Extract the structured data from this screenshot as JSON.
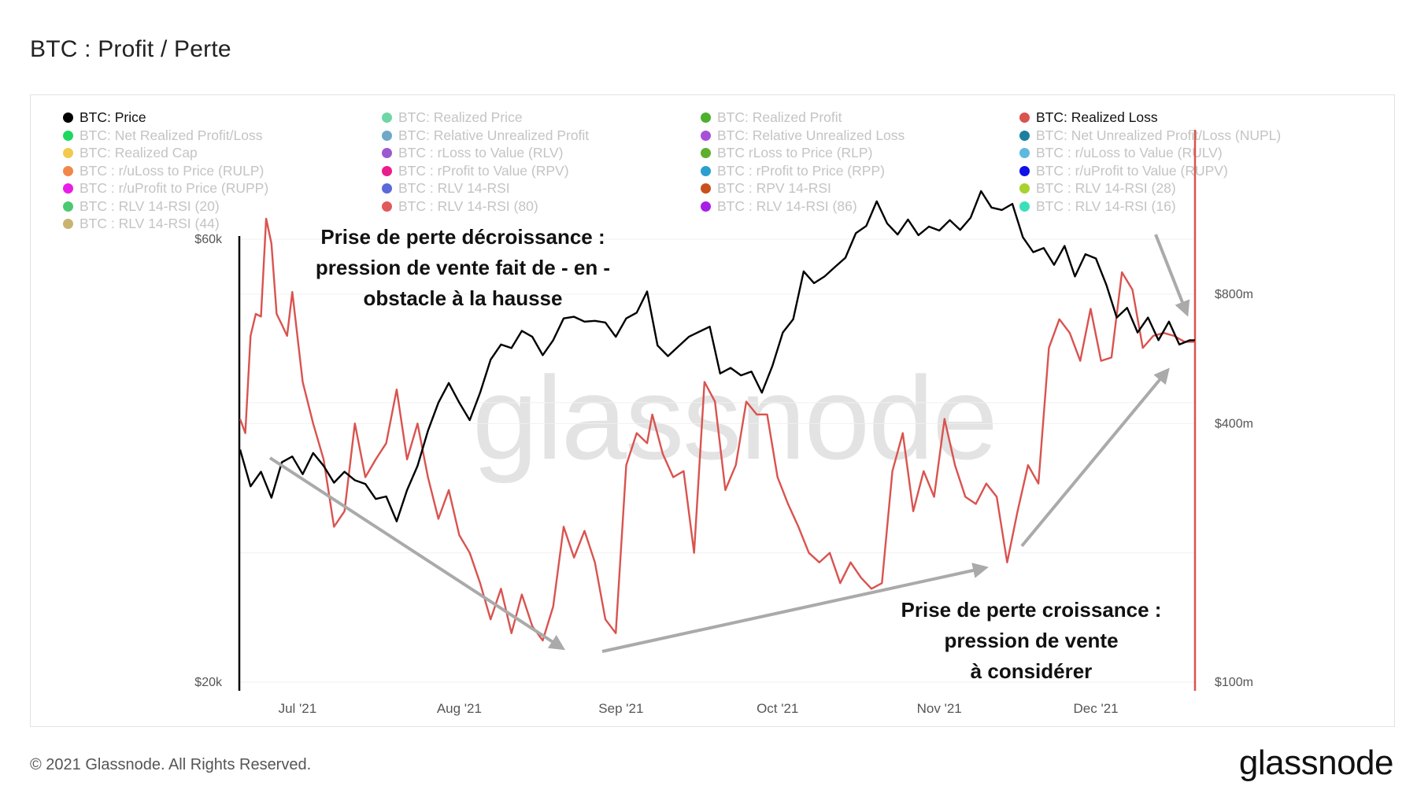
{
  "title": "BTC : Profit / Perte",
  "footer": "© 2021 Glassnode. All Rights Reserved.",
  "logo": "glassnode",
  "watermark": "glassnode",
  "legend": [
    {
      "label": "BTC: Price",
      "color": "#000000",
      "active": true
    },
    {
      "label": "BTC: Realized Price",
      "color": "#6fd6a6",
      "active": false
    },
    {
      "label": "BTC: Realized Profit",
      "color": "#4caf2e",
      "active": false
    },
    {
      "label": "BTC: Realized Loss",
      "color": "#d9534f",
      "active": true
    },
    {
      "label": "BTC: Net Realized Profit/Loss",
      "color": "#1ed760",
      "active": false
    },
    {
      "label": "BTC: Relative Unrealized Profit",
      "color": "#6fa8c8",
      "active": false
    },
    {
      "label": "BTC: Relative Unrealized Loss",
      "color": "#a84fd8",
      "active": false
    },
    {
      "label": "BTC: Net Unrealized Profit/Loss (NUPL)",
      "color": "#1c7fa0",
      "active": false
    },
    {
      "label": "BTC: Realized Cap",
      "color": "#f2c94c",
      "active": false
    },
    {
      "label": "BTC : rLoss to Value (RLV)",
      "color": "#9b59d0",
      "active": false
    },
    {
      "label": "BTC rLoss to Price (RLP)",
      "color": "#5fae2e",
      "active": false
    },
    {
      "label": "BTC : r/uLoss to Value (RULV)",
      "color": "#5fb8e0",
      "active": false
    },
    {
      "label": "BTC : r/uLoss to Price (RULP)",
      "color": "#f2874a",
      "active": false
    },
    {
      "label": "BTC : rProfit to Value (RPV)",
      "color": "#e91e8c",
      "active": false
    },
    {
      "label": "BTC : rProfit to Price (RPP)",
      "color": "#2a9fd0",
      "active": false
    },
    {
      "label": "BTC : r/uProfit to Value (RUPV)",
      "color": "#1010e8",
      "active": false
    },
    {
      "label": "BTC : r/uProfit to Price (RUPP)",
      "color": "#e81ee8",
      "active": false
    },
    {
      "label": "BTC : RLV 14-RSI",
      "color": "#5a6ad8",
      "active": false
    },
    {
      "label": "BTC : RPV 14-RSI",
      "color": "#c8501e",
      "active": false
    },
    {
      "label": "BTC : RLV 14-RSI (28)",
      "color": "#a8d22e",
      "active": false
    },
    {
      "label": "BTC : RLV 14-RSI (20)",
      "color": "#4cc870",
      "active": false
    },
    {
      "label": "BTC : RLV 14-RSI (80)",
      "color": "#e05a5a",
      "active": false
    },
    {
      "label": "BTC : RLV 14-RSI (86)",
      "color": "#a81ee8",
      "active": false
    },
    {
      "label": "BTC : RLV 14-RSI (16)",
      "color": "#3ce0b8",
      "active": false
    },
    {
      "label": "BTC : RLV 14-RSI (44)",
      "color": "#c8b46e",
      "active": false
    }
  ],
  "annotations": {
    "top_left": [
      "Prise de perte décroissance :",
      "pression de vente fait de - en -",
      "obstacle à la hausse"
    ],
    "bottom_right": [
      "Prise de perte croissance :",
      "pression de vente",
      "à considérer"
    ]
  },
  "chart_data": {
    "type": "line",
    "x_ticks": [
      "Jul '21",
      "Aug '21",
      "Sep '21",
      "Oct '21",
      "Nov '21",
      "Dec '21"
    ],
    "y_left": {
      "scale": "log",
      "ticks": [
        "$20k",
        "$60k"
      ],
      "tick_values": [
        20000,
        60000
      ]
    },
    "y_right": {
      "scale": "log",
      "ticks": [
        "$100m",
        "$400m",
        "$800m"
      ],
      "tick_values": [
        100000000,
        400000000,
        800000000
      ]
    },
    "x_range": [
      "2021-06-20",
      "2021-12-20"
    ],
    "series": [
      {
        "name": "BTC: Price",
        "color": "#000000",
        "axis": "left",
        "points": [
          [
            "2021-06-20",
            35600
          ],
          [
            "2021-06-22",
            32500
          ],
          [
            "2021-06-24",
            33700
          ],
          [
            "2021-06-26",
            31600
          ],
          [
            "2021-06-28",
            34500
          ],
          [
            "2021-06-30",
            35000
          ],
          [
            "2021-07-02",
            33500
          ],
          [
            "2021-07-04",
            35300
          ],
          [
            "2021-07-06",
            34200
          ],
          [
            "2021-07-08",
            32800
          ],
          [
            "2021-07-10",
            33700
          ],
          [
            "2021-07-12",
            33000
          ],
          [
            "2021-07-14",
            32700
          ],
          [
            "2021-07-16",
            31500
          ],
          [
            "2021-07-18",
            31700
          ],
          [
            "2021-07-20",
            29800
          ],
          [
            "2021-07-22",
            32200
          ],
          [
            "2021-07-24",
            34200
          ],
          [
            "2021-07-26",
            37300
          ],
          [
            "2021-07-28",
            40000
          ],
          [
            "2021-07-30",
            42000
          ],
          [
            "2021-08-01",
            40000
          ],
          [
            "2021-08-03",
            38300
          ],
          [
            "2021-08-05",
            41000
          ],
          [
            "2021-08-07",
            44500
          ],
          [
            "2021-08-09",
            46200
          ],
          [
            "2021-08-11",
            45800
          ],
          [
            "2021-08-13",
            47800
          ],
          [
            "2021-08-15",
            47100
          ],
          [
            "2021-08-17",
            45000
          ],
          [
            "2021-08-19",
            46700
          ],
          [
            "2021-08-21",
            49300
          ],
          [
            "2021-08-23",
            49500
          ],
          [
            "2021-08-25",
            48900
          ],
          [
            "2021-08-27",
            49000
          ],
          [
            "2021-08-29",
            48800
          ],
          [
            "2021-08-31",
            47100
          ],
          [
            "2021-09-02",
            49300
          ],
          [
            "2021-09-04",
            50000
          ],
          [
            "2021-09-06",
            52700
          ],
          [
            "2021-09-08",
            46100
          ],
          [
            "2021-09-10",
            44900
          ],
          [
            "2021-09-12",
            46000
          ],
          [
            "2021-09-14",
            47100
          ],
          [
            "2021-09-16",
            47700
          ],
          [
            "2021-09-18",
            48300
          ],
          [
            "2021-09-20",
            43000
          ],
          [
            "2021-09-22",
            43600
          ],
          [
            "2021-09-24",
            42800
          ],
          [
            "2021-09-26",
            43200
          ],
          [
            "2021-09-28",
            41000
          ],
          [
            "2021-09-30",
            43800
          ],
          [
            "2021-10-02",
            47600
          ],
          [
            "2021-10-04",
            49200
          ],
          [
            "2021-10-06",
            55400
          ],
          [
            "2021-10-08",
            53800
          ],
          [
            "2021-10-10",
            54700
          ],
          [
            "2021-10-12",
            56000
          ],
          [
            "2021-10-14",
            57300
          ],
          [
            "2021-10-16",
            60900
          ],
          [
            "2021-10-18",
            62000
          ],
          [
            "2021-10-20",
            65900
          ],
          [
            "2021-10-22",
            62400
          ],
          [
            "2021-10-24",
            60700
          ],
          [
            "2021-10-26",
            63000
          ],
          [
            "2021-10-28",
            60600
          ],
          [
            "2021-10-30",
            61900
          ],
          [
            "2021-11-01",
            61300
          ],
          [
            "2021-11-03",
            62900
          ],
          [
            "2021-11-05",
            61400
          ],
          [
            "2021-11-07",
            63300
          ],
          [
            "2021-11-09",
            67600
          ],
          [
            "2021-11-11",
            64900
          ],
          [
            "2021-11-13",
            64500
          ],
          [
            "2021-11-15",
            65500
          ],
          [
            "2021-11-17",
            60300
          ],
          [
            "2021-11-19",
            58100
          ],
          [
            "2021-11-21",
            58700
          ],
          [
            "2021-11-23",
            56300
          ],
          [
            "2021-11-25",
            59000
          ],
          [
            "2021-11-27",
            54700
          ],
          [
            "2021-11-29",
            57800
          ],
          [
            "2021-12-01",
            57200
          ],
          [
            "2021-12-03",
            53600
          ],
          [
            "2021-12-05",
            49400
          ],
          [
            "2021-12-07",
            50600
          ],
          [
            "2021-12-09",
            47600
          ],
          [
            "2021-12-11",
            49400
          ],
          [
            "2021-12-13",
            46700
          ],
          [
            "2021-12-15",
            48900
          ],
          [
            "2021-12-17",
            46200
          ],
          [
            "2021-12-19",
            46700
          ],
          [
            "2021-12-20",
            46700
          ]
        ]
      },
      {
        "name": "BTC: Realized Loss",
        "color": "#d9534f",
        "axis": "right",
        "points": [
          [
            "2021-06-20",
            410000000
          ],
          [
            "2021-06-21",
            380000000
          ],
          [
            "2021-06-22",
            640000000
          ],
          [
            "2021-06-23",
            720000000
          ],
          [
            "2021-06-24",
            710000000
          ],
          [
            "2021-06-25",
            1200000000
          ],
          [
            "2021-06-26",
            1050000000
          ],
          [
            "2021-06-27",
            720000000
          ],
          [
            "2021-06-28",
            680000000
          ],
          [
            "2021-06-29",
            640000000
          ],
          [
            "2021-06-30",
            810000000
          ],
          [
            "2021-07-02",
            500000000
          ],
          [
            "2021-07-04",
            400000000
          ],
          [
            "2021-07-06",
            330000000
          ],
          [
            "2021-07-08",
            230000000
          ],
          [
            "2021-07-10",
            250000000
          ],
          [
            "2021-07-12",
            400000000
          ],
          [
            "2021-07-14",
            300000000
          ],
          [
            "2021-07-16",
            330000000
          ],
          [
            "2021-07-18",
            360000000
          ],
          [
            "2021-07-20",
            480000000
          ],
          [
            "2021-07-22",
            330000000
          ],
          [
            "2021-07-24",
            400000000
          ],
          [
            "2021-07-26",
            300000000
          ],
          [
            "2021-07-28",
            240000000
          ],
          [
            "2021-07-30",
            280000000
          ],
          [
            "2021-08-01",
            220000000
          ],
          [
            "2021-08-03",
            200000000
          ],
          [
            "2021-08-05",
            170000000
          ],
          [
            "2021-08-07",
            140000000
          ],
          [
            "2021-08-09",
            165000000
          ],
          [
            "2021-08-11",
            130000000
          ],
          [
            "2021-08-13",
            160000000
          ],
          [
            "2021-08-15",
            135000000
          ],
          [
            "2021-08-17",
            125000000
          ],
          [
            "2021-08-19",
            150000000
          ],
          [
            "2021-08-21",
            230000000
          ],
          [
            "2021-08-23",
            195000000
          ],
          [
            "2021-08-25",
            225000000
          ],
          [
            "2021-08-27",
            190000000
          ],
          [
            "2021-08-29",
            140000000
          ],
          [
            "2021-08-31",
            130000000
          ],
          [
            "2021-09-02",
            320000000
          ],
          [
            "2021-09-04",
            380000000
          ],
          [
            "2021-09-06",
            360000000
          ],
          [
            "2021-09-07",
            420000000
          ],
          [
            "2021-09-09",
            340000000
          ],
          [
            "2021-09-11",
            300000000
          ],
          [
            "2021-09-13",
            310000000
          ],
          [
            "2021-09-15",
            200000000
          ],
          [
            "2021-09-17",
            500000000
          ],
          [
            "2021-09-19",
            450000000
          ],
          [
            "2021-09-21",
            280000000
          ],
          [
            "2021-09-23",
            320000000
          ],
          [
            "2021-09-25",
            450000000
          ],
          [
            "2021-09-27",
            420000000
          ],
          [
            "2021-09-29",
            420000000
          ],
          [
            "2021-10-01",
            300000000
          ],
          [
            "2021-10-03",
            260000000
          ],
          [
            "2021-10-05",
            230000000
          ],
          [
            "2021-10-07",
            200000000
          ],
          [
            "2021-10-09",
            190000000
          ],
          [
            "2021-10-11",
            200000000
          ],
          [
            "2021-10-13",
            170000000
          ],
          [
            "2021-10-15",
            190000000
          ],
          [
            "2021-10-17",
            175000000
          ],
          [
            "2021-10-19",
            165000000
          ],
          [
            "2021-10-21",
            170000000
          ],
          [
            "2021-10-23",
            310000000
          ],
          [
            "2021-10-25",
            380000000
          ],
          [
            "2021-10-27",
            250000000
          ],
          [
            "2021-10-29",
            310000000
          ],
          [
            "2021-10-31",
            270000000
          ],
          [
            "2021-11-02",
            410000000
          ],
          [
            "2021-11-04",
            320000000
          ],
          [
            "2021-11-06",
            270000000
          ],
          [
            "2021-11-08",
            260000000
          ],
          [
            "2021-11-10",
            290000000
          ],
          [
            "2021-11-12",
            270000000
          ],
          [
            "2021-11-14",
            190000000
          ],
          [
            "2021-11-16",
            250000000
          ],
          [
            "2021-11-18",
            320000000
          ],
          [
            "2021-11-20",
            290000000
          ],
          [
            "2021-11-22",
            600000000
          ],
          [
            "2021-11-24",
            700000000
          ],
          [
            "2021-11-26",
            650000000
          ],
          [
            "2021-11-28",
            560000000
          ],
          [
            "2021-11-30",
            740000000
          ],
          [
            "2021-12-02",
            560000000
          ],
          [
            "2021-12-04",
            570000000
          ],
          [
            "2021-12-06",
            900000000
          ],
          [
            "2021-12-08",
            820000000
          ],
          [
            "2021-12-10",
            600000000
          ],
          [
            "2021-12-12",
            640000000
          ],
          [
            "2021-12-14",
            650000000
          ],
          [
            "2021-12-16",
            640000000
          ],
          [
            "2021-12-18",
            620000000
          ],
          [
            "2021-12-20",
            620000000
          ]
        ]
      }
    ]
  }
}
